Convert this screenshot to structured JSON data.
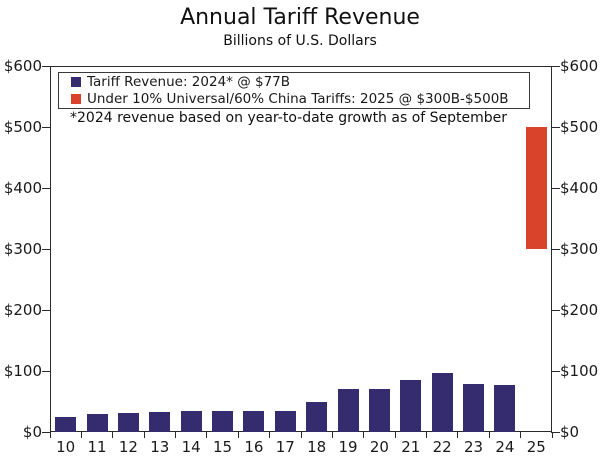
{
  "colors": {
    "bar_navy": "#342C6E",
    "bar_red": "#D9422B",
    "axis": "#2a2a2a",
    "text": "#111111"
  },
  "chart_data": {
    "type": "bar",
    "title": "Annual Tariff Revenue",
    "subtitle": "Billions of U.S. Dollars",
    "footnote": "*2024 revenue based on year-to-date growth as of September",
    "categories": [
      "10",
      "11",
      "12",
      "13",
      "14",
      "15",
      "16",
      "17",
      "18",
      "19",
      "20",
      "21",
      "22",
      "23",
      "24",
      "25"
    ],
    "series": [
      {
        "name": "Tariff Revenue: 2024* @ $77B",
        "type": "column",
        "color": "#342C6E",
        "values": [
          25,
          29,
          31,
          33,
          34,
          35,
          34,
          35,
          50,
          71,
          70,
          85,
          97,
          78,
          77,
          null
        ]
      },
      {
        "name": "Under 10% Universal/60% China Tariffs: 2025 @ $300B-$500B",
        "type": "range-column",
        "color": "#D9422B",
        "ranges": [
          null,
          null,
          null,
          null,
          null,
          null,
          null,
          null,
          null,
          null,
          null,
          null,
          null,
          null,
          null,
          [
            300,
            500
          ]
        ]
      }
    ],
    "ylim": [
      0,
      600
    ],
    "ytick_step": 100,
    "ytick_labels": [
      "$0",
      "$100",
      "$200",
      "$300",
      "$400",
      "$500",
      "$600"
    ],
    "grid": false,
    "legend_position": "top-left-inside",
    "axes_mirrored": true
  }
}
